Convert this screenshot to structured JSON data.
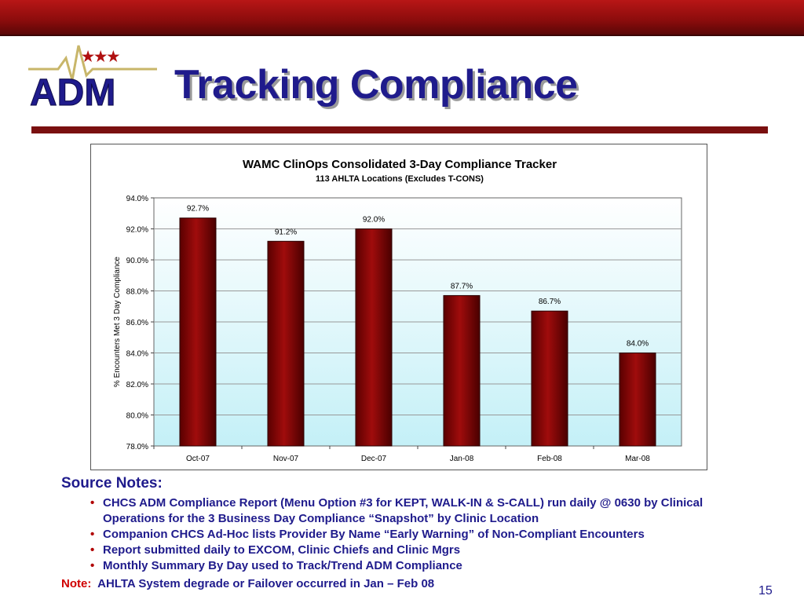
{
  "slide": {
    "title": "Tracking Compliance",
    "logo_text": "ADM",
    "page_number": "15"
  },
  "chart_data": {
    "type": "bar",
    "title": "WAMC ClinOps Consolidated 3-Day Compliance Tracker",
    "subtitle": "113 AHLTA Locations (Excludes T-CONS)",
    "xlabel": "",
    "ylabel": "% Encounters Met 3 Day Compliance",
    "categories": [
      "Oct-07",
      "Nov-07",
      "Dec-07",
      "Jan-08",
      "Feb-08",
      "Mar-08"
    ],
    "values": [
      92.7,
      91.2,
      92.0,
      87.7,
      86.7,
      84.0
    ],
    "data_labels": [
      "92.7%",
      "91.2%",
      "92.0%",
      "87.7%",
      "86.7%",
      "84.0%"
    ],
    "ylim": [
      78.0,
      94.0
    ],
    "yticks": [
      78,
      80,
      82,
      84,
      86,
      88,
      90,
      92,
      94
    ],
    "ytick_labels": [
      "78.0%",
      "80.0%",
      "82.0%",
      "84.0%",
      "86.0%",
      "88.0%",
      "90.0%",
      "92.0%",
      "94.0%"
    ],
    "grid": true,
    "bar_color": "#8b0000"
  },
  "notes": {
    "heading": "Source Notes:",
    "bullets": [
      "CHCS ADM Compliance Report (Menu Option #3 for KEPT, WALK-IN & S-CALL) run daily @ 0630 by Clinical Operations for the 3 Business Day Compliance “Snapshot” by Clinic Location",
      "Companion CHCS Ad-Hoc lists Provider By Name “Early Warning” of Non-Compliant Encounters",
      "Report submitted daily to EXCOM, Clinic Chiefs and Clinic Mgrs",
      "Monthly Summary By Day used to Track/Trend ADM Compliance"
    ],
    "note_label": "Note:",
    "note_text": "AHLTA System degrade or Failover occurred in Jan – Feb 08"
  }
}
